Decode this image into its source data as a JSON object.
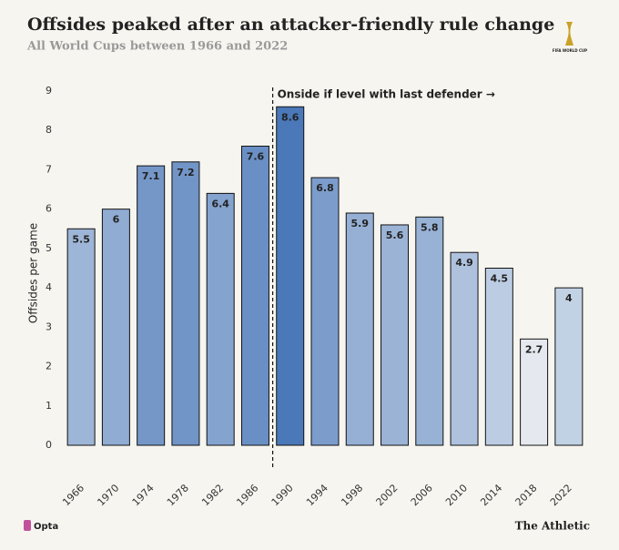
{
  "chart_data": {
    "type": "bar",
    "title": "Offsides peaked after an attacker-friendly rule change",
    "subtitle": "All World Cups between 1966 and 2022",
    "y_label": "Offsides per game",
    "annotation": "Onside if level with last defender →",
    "categories": [
      "1966",
      "1970",
      "1974",
      "1978",
      "1982",
      "1986",
      "1990",
      "1994",
      "1998",
      "2002",
      "2006",
      "2010",
      "2014",
      "2018",
      "2022"
    ],
    "values": [
      5.5,
      6,
      7.1,
      7.2,
      6.4,
      7.6,
      8.6,
      6.8,
      5.9,
      5.6,
      5.8,
      4.9,
      4.5,
      2.7,
      4
    ],
    "colors": [
      "#9db5d6",
      "#90acd3",
      "#7497c8",
      "#7295c7",
      "#84a3cf",
      "#6a8fc5",
      "#4a78b8",
      "#7c9dcc",
      "#95b0d4",
      "#9bb4d6",
      "#97b2d5",
      "#aec2de",
      "#bccde3",
      "#e5e9ef",
      "#c2d2e5"
    ],
    "ylim": [
      0,
      9
    ],
    "yticks": [
      0,
      1,
      2,
      3,
      4,
      5,
      6,
      7,
      8,
      9
    ],
    "grid": false,
    "source": "Opta",
    "brand": "The Athletic",
    "logo_text": "FIFA WORLD CUP"
  }
}
